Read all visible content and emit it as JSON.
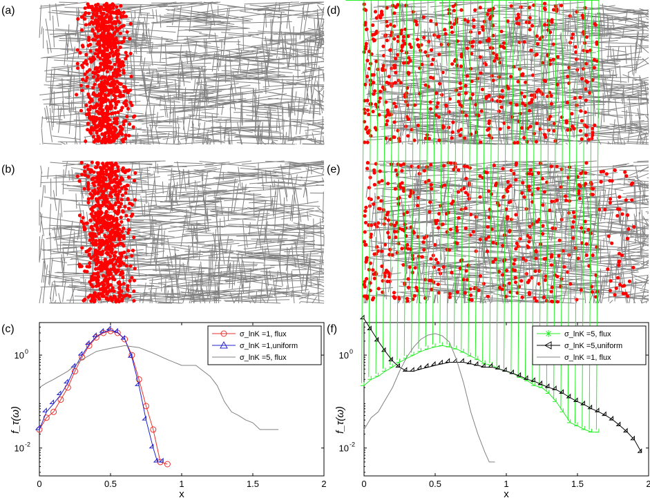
{
  "figure": {
    "panel_labels": [
      "(a)",
      "(b)",
      "(c)",
      "(d)",
      "(e)",
      "(f)"
    ]
  },
  "chart_data": [
    {
      "panel": "(a)",
      "type": "scatter",
      "description_free": true,
      "background": "fracture network",
      "colors": {
        "fractures": "#808080",
        "particles": "#ff0000"
      },
      "particle_spread": "narrow-band"
    },
    {
      "panel": "(b)",
      "type": "scatter",
      "background": "fracture network",
      "colors": {
        "fractures": "#808080",
        "particles": "#ff0000"
      },
      "particle_spread": "narrow-band"
    },
    {
      "panel": "(d)",
      "type": "scatter",
      "background": "fracture network",
      "colors": {
        "fractures": "#808080",
        "particles": "#ff0000"
      },
      "particle_spread": "wide"
    },
    {
      "panel": "(e)",
      "type": "scatter",
      "background": "fracture network",
      "colors": {
        "fractures": "#808080",
        "particles": "#ff0000"
      },
      "particle_spread": "wide"
    },
    {
      "panel": "(c)",
      "type": "line",
      "xlabel": "x",
      "ylabel": "f_τ(ω)",
      "xlim": [
        0,
        2
      ],
      "ylim_log10": [
        -2.6,
        0.7
      ],
      "y_scale": "log",
      "xticks": [
        "0",
        "0.5",
        "1",
        "1.5",
        "2"
      ],
      "yticks": [
        {
          "value": 1,
          "label": "10^0"
        },
        {
          "value": 0.01,
          "label": "10^-2"
        }
      ],
      "legend_position": "top-right",
      "series": [
        {
          "name": "σ_lnK =1,  flux",
          "color": "#e8302b",
          "marker": "circle",
          "x": [
            0,
            0.05,
            0.1,
            0.15,
            0.2,
            0.25,
            0.3,
            0.35,
            0.4,
            0.45,
            0.5,
            0.55,
            0.6,
            0.65,
            0.7,
            0.75,
            0.8,
            0.85,
            0.9
          ],
          "y": [
            0.025,
            0.045,
            0.06,
            0.11,
            0.2,
            0.45,
            0.9,
            1.6,
            2.4,
            3.0,
            3.3,
            3.0,
            2.2,
            1.0,
            0.3,
            0.08,
            0.025,
            0.005,
            0.0045
          ]
        },
        {
          "name": "σ_lnK =1,uniform",
          "color": "#1f1fd0",
          "marker": "triangle",
          "x": [
            0,
            0.05,
            0.1,
            0.15,
            0.2,
            0.25,
            0.3,
            0.35,
            0.4,
            0.45,
            0.5,
            0.55,
            0.6,
            0.65,
            0.7,
            0.75,
            0.8,
            0.83,
            0.87
          ],
          "y": [
            0.025,
            0.06,
            0.09,
            0.14,
            0.25,
            0.55,
            1.0,
            1.7,
            2.5,
            3.1,
            3.5,
            3.1,
            2.2,
            0.9,
            0.22,
            0.04,
            0.01,
            0.005,
            0.005
          ]
        },
        {
          "name": "σ_lnK =5,  flux",
          "color": "#808080",
          "marker": "none",
          "x": [
            0,
            0.05,
            0.1,
            0.2,
            0.3,
            0.4,
            0.5,
            0.6,
            0.7,
            0.8,
            0.9,
            1.0,
            1.1,
            1.2,
            1.25,
            1.3,
            1.35,
            1.4,
            1.45,
            1.5,
            1.55,
            1.6,
            1.68
          ],
          "y": [
            0.2,
            0.25,
            0.3,
            0.45,
            0.8,
            1.2,
            1.4,
            1.6,
            1.45,
            1.1,
            0.8,
            0.6,
            0.6,
            0.35,
            0.22,
            0.1,
            0.06,
            0.05,
            0.04,
            0.035,
            0.025,
            0.025,
            0.025
          ]
        }
      ]
    },
    {
      "panel": "(f)",
      "type": "line",
      "xlabel": "x",
      "ylabel": "f_τ(ω)",
      "xlim": [
        0,
        2
      ],
      "ylim_log10": [
        -2.6,
        0.7
      ],
      "y_scale": "log",
      "xticks": [
        "0",
        "0.5",
        "1",
        "1.5",
        "2"
      ],
      "yticks": [
        {
          "value": 1,
          "label": "10^0"
        },
        {
          "value": 0.01,
          "label": "10^-2"
        }
      ],
      "legend_position": "top-right",
      "series": [
        {
          "name": "σ_lnK =5,  flux",
          "color": "#22ee22",
          "marker": "asterisk",
          "x": [
            0,
            0.05,
            0.1,
            0.15,
            0.2,
            0.25,
            0.3,
            0.35,
            0.4,
            0.45,
            0.5,
            0.55,
            0.6,
            0.65,
            0.7,
            0.75,
            0.8,
            0.85,
            0.9,
            0.95,
            1.0,
            1.05,
            1.1,
            1.15,
            1.2,
            1.25,
            1.3,
            1.35,
            1.4,
            1.45,
            1.5,
            1.55,
            1.6,
            1.65
          ],
          "y": [
            0.22,
            0.3,
            0.35,
            0.45,
            0.55,
            0.7,
            0.85,
            1.0,
            1.2,
            1.35,
            1.5,
            1.6,
            1.5,
            1.35,
            1.15,
            0.95,
            0.8,
            0.65,
            0.6,
            0.5,
            0.45,
            0.4,
            0.33,
            0.28,
            0.22,
            0.2,
            0.15,
            0.1,
            0.06,
            0.035,
            0.03,
            0.025,
            0.022,
            0.022
          ]
        },
        {
          "name": "σ_lnK =5,uniform",
          "color": "#000000",
          "marker": "triangle-left",
          "x": [
            0,
            0.05,
            0.1,
            0.15,
            0.2,
            0.25,
            0.3,
            0.35,
            0.4,
            0.45,
            0.5,
            0.55,
            0.6,
            0.65,
            0.7,
            0.75,
            0.8,
            0.85,
            0.9,
            0.95,
            1.0,
            1.05,
            1.1,
            1.15,
            1.2,
            1.25,
            1.3,
            1.35,
            1.4,
            1.45,
            1.5,
            1.55,
            1.6,
            1.65,
            1.7,
            1.75,
            1.8,
            1.85,
            1.9,
            1.95
          ],
          "y": [
            6.0,
            3.5,
            2.0,
            1.2,
            0.75,
            0.55,
            0.45,
            0.45,
            0.5,
            0.55,
            0.6,
            0.65,
            0.7,
            0.7,
            0.7,
            0.65,
            0.6,
            0.55,
            0.55,
            0.5,
            0.45,
            0.4,
            0.35,
            0.3,
            0.27,
            0.23,
            0.2,
            0.18,
            0.15,
            0.12,
            0.1,
            0.085,
            0.07,
            0.06,
            0.05,
            0.04,
            0.03,
            0.022,
            0.015,
            0.008
          ]
        },
        {
          "name": "σ_lnK =1,  flux",
          "color": "#808080",
          "marker": "none",
          "x": [
            0,
            0.05,
            0.1,
            0.15,
            0.2,
            0.25,
            0.3,
            0.35,
            0.4,
            0.45,
            0.5,
            0.55,
            0.6,
            0.65,
            0.7,
            0.75,
            0.8,
            0.85,
            0.88,
            0.92
          ],
          "y": [
            0.025,
            0.045,
            0.06,
            0.11,
            0.2,
            0.45,
            0.9,
            1.5,
            2.2,
            2.7,
            2.9,
            2.6,
            1.9,
            0.8,
            0.25,
            0.06,
            0.02,
            0.008,
            0.005,
            0.005
          ]
        }
      ]
    }
  ]
}
